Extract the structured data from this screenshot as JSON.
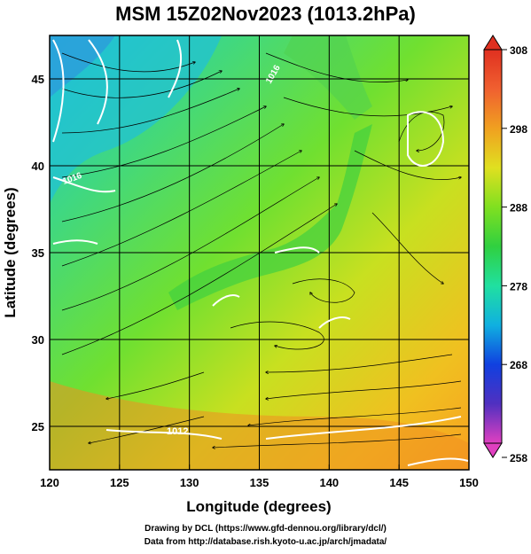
{
  "title": "MSM 15Z02Nov2023 (1013.2hPa)",
  "x_axis": {
    "label": "Longitude (degrees)",
    "ticks": [
      "120",
      "125",
      "130",
      "135",
      "140",
      "145",
      "150"
    ]
  },
  "y_axis": {
    "label": "Latitude  (degrees)",
    "ticks": [
      "25",
      "30",
      "35",
      "40",
      "45"
    ]
  },
  "colorbar": {
    "ticks": [
      "308",
      "298",
      "288",
      "278",
      "268",
      "258"
    ],
    "colors": [
      "#e0306a",
      "#c040d0",
      "#5030c0",
      "#1040e0",
      "#10b0e0",
      "#20e0a0",
      "#30d040",
      "#80e020",
      "#e0e020",
      "#f0a020",
      "#f06030",
      "#e03020"
    ]
  },
  "contour_labels": [
    "1012",
    "1016",
    "1016"
  ],
  "footer": {
    "line1": "Drawing by DCL (https://www.gfd-dennou.org/library/dcl/)",
    "line2": "Data from http://database.rish.kyoto-u.ac.jp/arch/jmadata/"
  }
}
